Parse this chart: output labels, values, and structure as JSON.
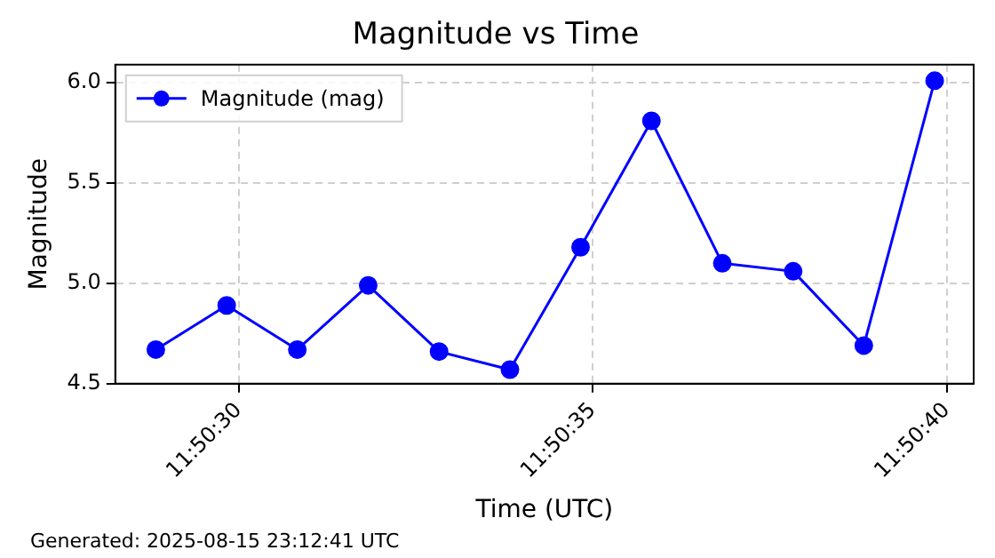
{
  "chart_data": {
    "type": "line",
    "title": "Magnitude vs Time",
    "xlabel": "Time (UTC)",
    "ylabel": "Magnitude",
    "x": [
      11.841342,
      11.84162,
      11.841897,
      11.842175,
      11.842453,
      11.842731,
      11.843008,
      11.843286,
      11.843564,
      11.843842,
      11.844119,
      11.844397
    ],
    "series": [
      {
        "name": "Magnitude (mag)",
        "color": "#0000ff",
        "values": [
          4.67,
          4.89,
          4.67,
          4.99,
          4.66,
          4.57,
          5.18,
          5.81,
          5.1,
          5.06,
          4.69,
          6.01
        ]
      }
    ],
    "xlim": [
      11.841183,
      11.84455
    ],
    "xticks": [
      {
        "value": 11.841667,
        "label": "11:50:30"
      },
      {
        "value": 11.843056,
        "label": "11:50:35"
      },
      {
        "value": 11.844444,
        "label": "11:50:40"
      }
    ],
    "ylim": [
      4.5,
      6.09
    ],
    "yticks": [
      {
        "value": 4.5,
        "label": "4.5"
      },
      {
        "value": 5.0,
        "label": "5.0"
      },
      {
        "value": 5.5,
        "label": "5.5"
      },
      {
        "value": 6.0,
        "label": "6.0"
      }
    ],
    "grid": true,
    "legend": "top left",
    "marker": "circle",
    "line_style": "solid",
    "annotations": [
      "Generated: 2025-08-15 23:12:41 UTC"
    ]
  }
}
